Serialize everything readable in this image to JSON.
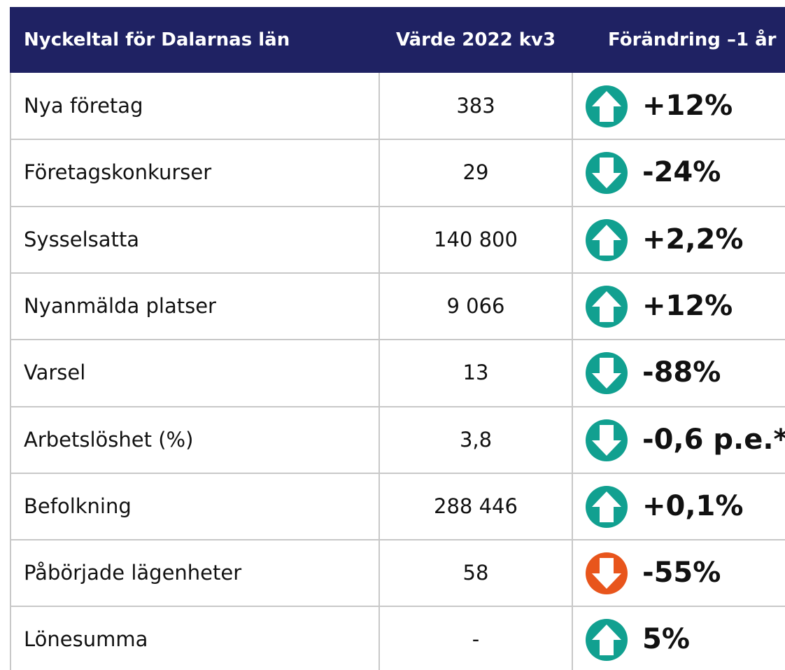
{
  "header": [
    "Nyckeltal för Dalarnas län",
    "Värde 2022 kv3",
    "Förändring –1 år"
  ],
  "rows": [
    {
      "label": "Nya företag",
      "value": "383",
      "change": "+12%",
      "direction": "up",
      "color": "#11a090"
    },
    {
      "label": "Företagskonkurser",
      "value": "29",
      "change": "-24%",
      "direction": "down",
      "color": "#11a090"
    },
    {
      "label": "Sysselsatta",
      "value": "140 800",
      "change": "+2,2%",
      "direction": "up",
      "color": "#11a090"
    },
    {
      "label": "Nyanmälda platser",
      "value": "9 066",
      "change": "+12%",
      "direction": "up",
      "color": "#11a090"
    },
    {
      "label": "Varsel",
      "value": "13",
      "change": "-88%",
      "direction": "down",
      "color": "#11a090"
    },
    {
      "label": "Arbetslöshet (%)",
      "value": "3,8",
      "change": "-0,6 p.e.*",
      "direction": "down",
      "color": "#11a090"
    },
    {
      "label": "Befolkning",
      "value": "288 446",
      "change": "+0,1%",
      "direction": "up",
      "color": "#11a090"
    },
    {
      "label": "Påbörjade lägenheter",
      "value": "58",
      "change": "-55%",
      "direction": "down",
      "color": "#e8551c"
    },
    {
      "label": "Lönesumma",
      "value": "-",
      "change": "5%",
      "direction": "up",
      "color": "#11a090"
    }
  ]
}
